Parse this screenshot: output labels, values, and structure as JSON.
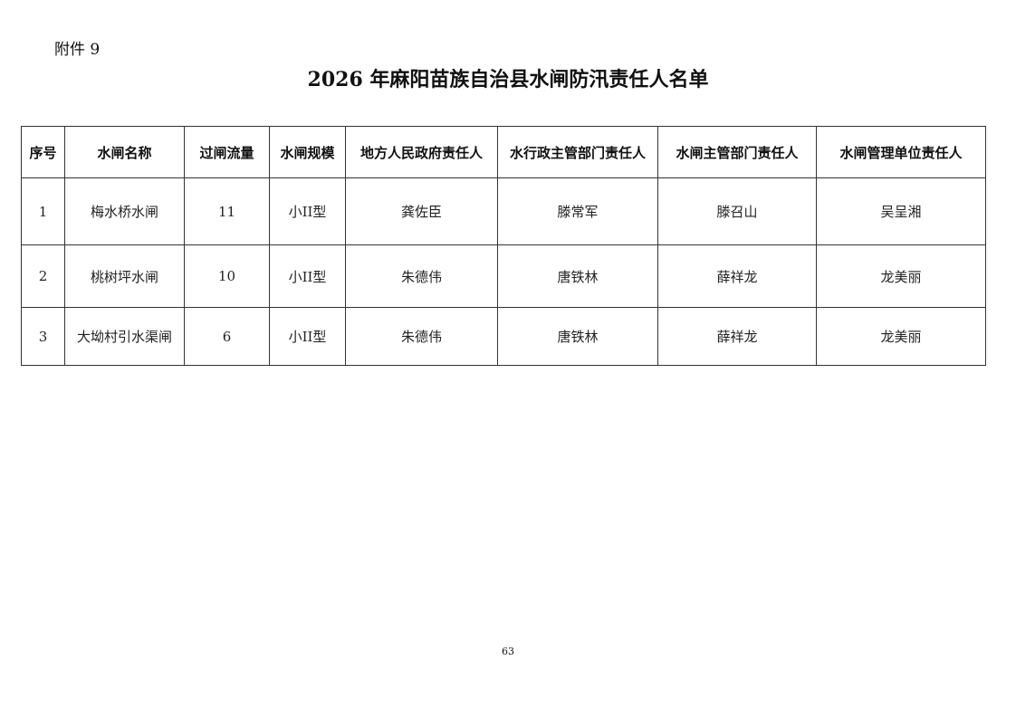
{
  "attachment_label": "附件 9",
  "title": "2026 年麻阳苗族自治县水闸防汛责任人名单",
  "table": {
    "headers": [
      "序号",
      "水闸名称",
      "过闸流量",
      "水闸规模",
      "地方人民政府责任人",
      "水行政主管部门责任人",
      "水闸主管部门责任人",
      "水闸管理单位责任人"
    ],
    "rows": [
      [
        "1",
        "梅水桥水闸",
        "11",
        "小II型",
        "龚佐臣",
        "滕常军",
        "滕召山",
        "吴呈湘"
      ],
      [
        "2",
        "桃树坪水闸",
        "10",
        "小II型",
        "朱德伟",
        "唐铁林",
        "薛祥龙",
        "龙美丽"
      ],
      [
        "3",
        "大坳村引水渠闸",
        "6",
        "小II型",
        "朱德伟",
        "唐铁林",
        "薛祥龙",
        "龙美丽"
      ]
    ]
  },
  "page_number": "63"
}
